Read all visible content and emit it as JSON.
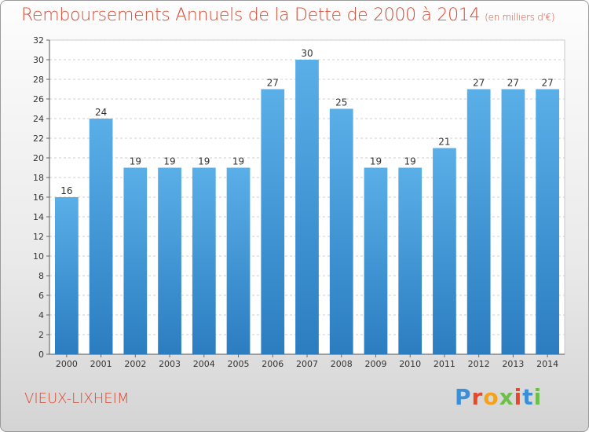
{
  "header": {
    "title": "Remboursements Annuels de la Dette de 2000 à 2014",
    "subtitle": "(en milliers d'€)"
  },
  "footer": {
    "city": "VIEUX-LIXHEIM",
    "logo": "Proxiti"
  },
  "colors": {
    "title": "#d84a33",
    "bar_light": "#5aafe8",
    "bar_dark": "#2b7dc0",
    "logo_letters": [
      "#3a8fd8",
      "#e8482a",
      "#f5a21b",
      "#6cc04a",
      "#e8482a",
      "#3a8fd8",
      "#6cc04a"
    ]
  },
  "chart_data": {
    "type": "bar",
    "categories": [
      "2000",
      "2001",
      "2002",
      "2003",
      "2004",
      "2005",
      "2006",
      "2007",
      "2008",
      "2009",
      "2010",
      "2011",
      "2012",
      "2013",
      "2014"
    ],
    "values": [
      16,
      24,
      19,
      19,
      19,
      19,
      27,
      30,
      25,
      19,
      19,
      21,
      27,
      27,
      27
    ],
    "ylim": [
      0,
      32
    ],
    "yticks": [
      0,
      2,
      4,
      6,
      8,
      10,
      12,
      14,
      16,
      18,
      20,
      22,
      24,
      26,
      28,
      30,
      32
    ],
    "grid": true
  }
}
